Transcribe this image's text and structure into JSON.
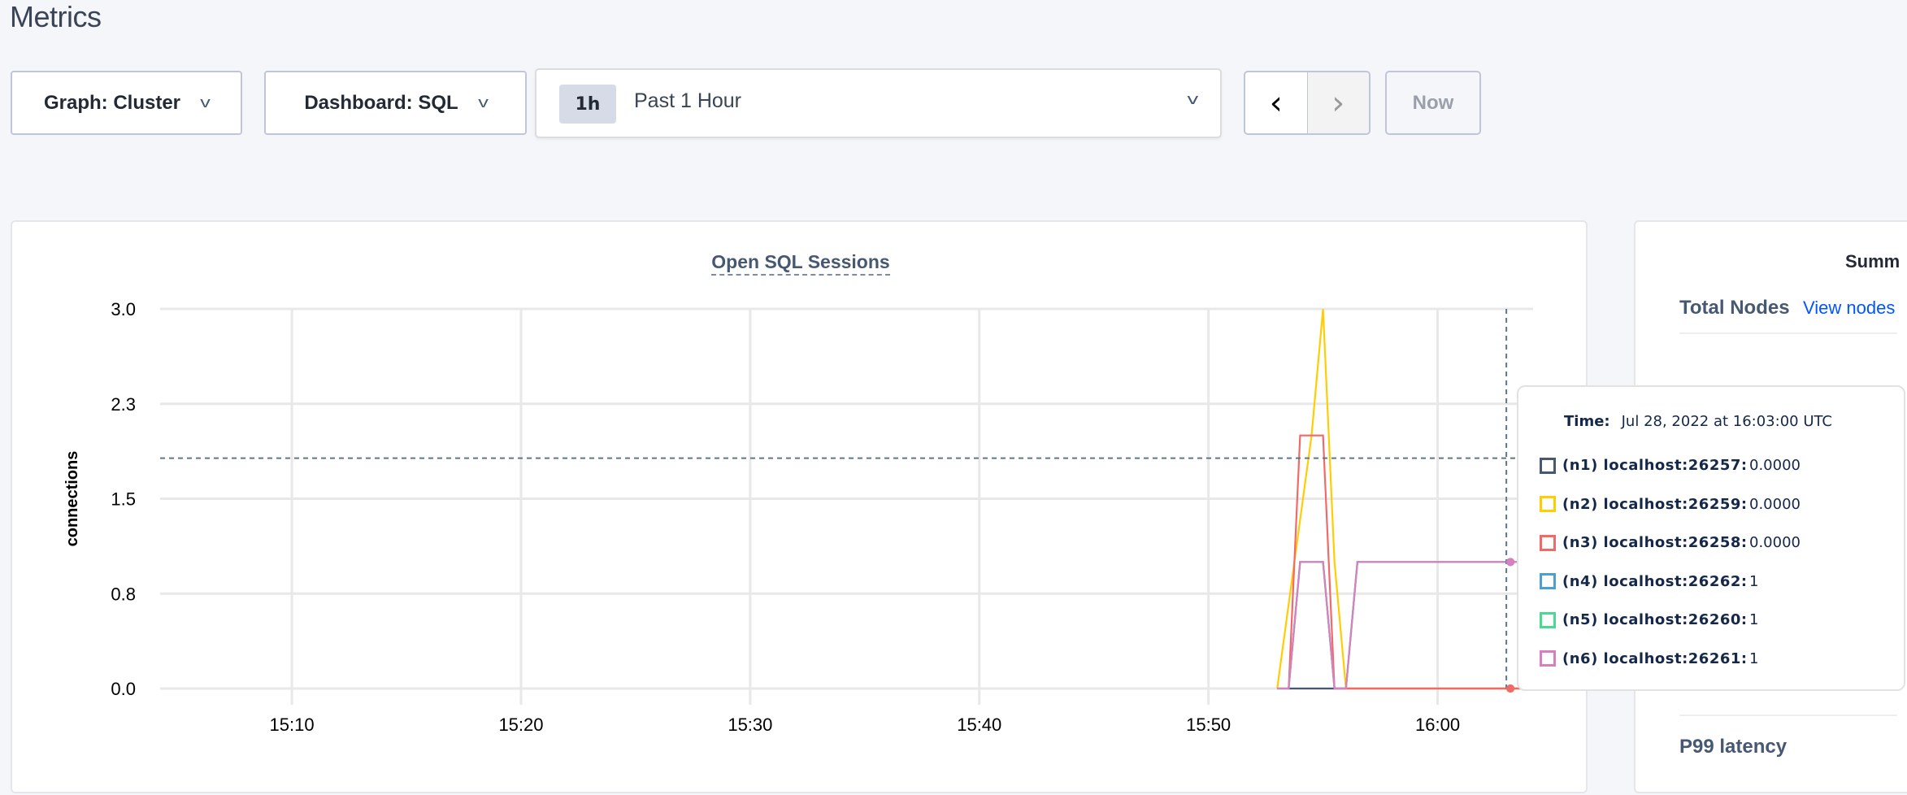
{
  "page": {
    "title": "Metrics"
  },
  "toolbar": {
    "graph_select": "Graph: Cluster",
    "dashboard_select": "Dashboard: SQL",
    "time_badge": "1h",
    "time_range": "Past 1 Hour",
    "prev_icon": "chevron-left-icon",
    "next_icon": "chevron-right-icon",
    "now_label": "Now"
  },
  "chart_data": {
    "type": "line",
    "title": "Open SQL Sessions",
    "xlabel": "",
    "ylabel": "connections",
    "xlim": [
      "15:04:15",
      "16:04:10"
    ],
    "ylim": [
      0,
      3
    ],
    "x_ticks": [
      "15:10",
      "15:20",
      "15:30",
      "15:40",
      "15:50",
      "16:00"
    ],
    "y_ticks": [
      "0.0",
      "0.8",
      "1.5",
      "2.3",
      "3.0"
    ],
    "grid": true,
    "series": [
      {
        "name": "(n1) localhost:26257",
        "color": "#475872",
        "points": [
          [
            "15:53:30",
            0
          ],
          [
            "15:54:00",
            0
          ],
          [
            "16:04:00",
            0
          ]
        ]
      },
      {
        "name": "(n2) localhost:26259",
        "color": "#ffcd02",
        "points": [
          [
            "15:53:00",
            0
          ],
          [
            "15:54:30",
            2
          ],
          [
            "15:55:00",
            3
          ],
          [
            "15:55:30",
            1
          ],
          [
            "15:56:00",
            0
          ],
          [
            "16:04:00",
            0
          ]
        ]
      },
      {
        "name": "(n3) localhost:26258",
        "color": "#f16969",
        "points": [
          [
            "15:53:30",
            0
          ],
          [
            "15:54:00",
            2
          ],
          [
            "15:55:00",
            2
          ],
          [
            "15:55:30",
            0
          ],
          [
            "16:04:00",
            0
          ]
        ]
      },
      {
        "name": "(n4) localhost:26262",
        "color": "#4e9fd1",
        "points": [
          [
            "15:53:00",
            0
          ],
          [
            "15:53:30",
            0
          ],
          [
            "15:54:00",
            1
          ],
          [
            "15:55:00",
            1
          ],
          [
            "15:55:30",
            0
          ],
          [
            "15:56:00",
            0
          ],
          [
            "15:56:30",
            1
          ],
          [
            "16:04:00",
            1
          ]
        ]
      },
      {
        "name": "(n5) localhost:26260",
        "color": "#49d990",
        "points": [
          [
            "15:53:00",
            0
          ],
          [
            "15:53:30",
            0
          ],
          [
            "15:54:00",
            1
          ],
          [
            "15:55:00",
            1
          ],
          [
            "15:55:30",
            0
          ],
          [
            "15:56:00",
            0
          ],
          [
            "15:56:30",
            1
          ],
          [
            "16:04:00",
            1
          ]
        ]
      },
      {
        "name": "(n6) localhost:26261",
        "color": "#d77fbf",
        "points": [
          [
            "15:53:00",
            0
          ],
          [
            "15:53:30",
            0
          ],
          [
            "15:54:00",
            1
          ],
          [
            "15:55:00",
            1
          ],
          [
            "15:55:30",
            0
          ],
          [
            "15:56:00",
            0
          ],
          [
            "15:56:30",
            1
          ],
          [
            "16:04:00",
            1
          ]
        ]
      }
    ],
    "hover": {
      "x": "16:03:00",
      "y": 1.82
    }
  },
  "tooltip": {
    "time_label": "Time:",
    "time_value": "Jul 28, 2022 at 16:03:00 UTC",
    "rows": [
      {
        "name": "(n1) localhost:26257:",
        "value": "0.0000",
        "color": "#475872"
      },
      {
        "name": "(n2) localhost:26259:",
        "value": "0.0000",
        "color": "#ffcd02"
      },
      {
        "name": "(n3) localhost:26258:",
        "value": "0.0000",
        "color": "#f16969"
      },
      {
        "name": "(n4) localhost:26262:",
        "value": "1",
        "color": "#4e9fd1"
      },
      {
        "name": "(n5) localhost:26260:",
        "value": "1",
        "color": "#49d990"
      },
      {
        "name": "(n6) localhost:26261:",
        "value": "1",
        "color": "#d77fbf"
      }
    ]
  },
  "summary": {
    "title": "Summ",
    "total_nodes_label": "Total Nodes",
    "view_nodes_link": "View nodes",
    "p99_label": "P99 latency"
  }
}
